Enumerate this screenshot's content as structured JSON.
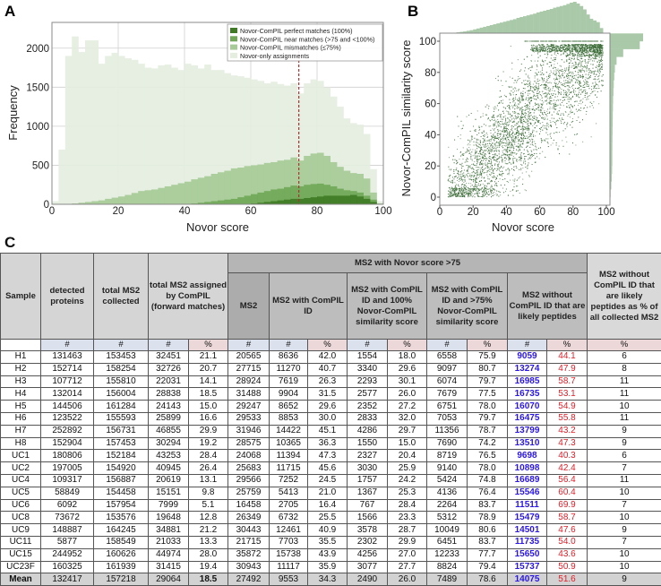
{
  "panels": {
    "a": "A",
    "b": "B",
    "c": "C"
  },
  "chart_data": [
    {
      "type": "bar",
      "subtype": "overlaid histogram",
      "title": "",
      "xlabel": "Novor score",
      "ylabel": "Frequency",
      "xlim": [
        0,
        100
      ],
      "ylim": [
        0,
        2330
      ],
      "xticks": [
        0,
        20,
        40,
        60,
        80,
        100
      ],
      "yticks": [
        0,
        500,
        1000,
        1500,
        2000
      ],
      "grid": true,
      "legend_position": "top-right",
      "threshold_line": {
        "x": 74.5,
        "color": "#b03030",
        "style": "dashed"
      },
      "bin_width": 2,
      "bin_starts": [
        0,
        2,
        4,
        6,
        8,
        10,
        12,
        14,
        16,
        18,
        20,
        22,
        24,
        26,
        28,
        30,
        32,
        34,
        36,
        38,
        40,
        42,
        44,
        46,
        48,
        50,
        52,
        54,
        56,
        58,
        60,
        62,
        64,
        66,
        68,
        70,
        72,
        74,
        76,
        78,
        80,
        82,
        84,
        86,
        88,
        90,
        92,
        94,
        96,
        98
      ],
      "series": [
        {
          "name": "Novor-only assignments",
          "color": "#e4eedf",
          "values": [
            40,
            700,
            1900,
            2150,
            1950,
            2100,
            2100,
            1800,
            1900,
            1940,
            1900,
            1870,
            1850,
            1800,
            1750,
            1740,
            1780,
            1790,
            1750,
            1720,
            1800,
            1780,
            1740,
            1790,
            1720,
            1720,
            1680,
            1650,
            1640,
            1620,
            1600,
            1580,
            1550,
            1570,
            1540,
            1520,
            1550,
            1420,
            1550,
            1600,
            1580,
            1500,
            1380,
            1250,
            1100,
            1040,
            1020,
            900,
            450,
            40
          ]
        },
        {
          "name": "Novor-ComPIL mismatches (≤75%)",
          "color": "#a6cb96",
          "values": [
            0,
            0,
            0,
            10,
            20,
            30,
            40,
            50,
            70,
            85,
            100,
            120,
            145,
            170,
            180,
            190,
            210,
            230,
            250,
            270,
            290,
            320,
            340,
            360,
            390,
            410,
            430,
            460,
            470,
            490,
            500,
            510,
            530,
            540,
            560,
            570,
            600,
            560,
            620,
            650,
            660,
            620,
            540,
            480,
            430,
            400,
            390,
            330,
            150,
            10
          ]
        },
        {
          "name": "Novor-ComPIL near matches (>75 and <100%)",
          "color": "#70a858",
          "values": [
            0,
            0,
            0,
            0,
            0,
            0,
            0,
            0,
            0,
            0,
            0,
            0,
            0,
            0,
            0,
            0,
            0,
            0,
            0,
            0,
            5,
            10,
            20,
            30,
            40,
            50,
            60,
            70,
            90,
            110,
            130,
            150,
            170,
            190,
            200,
            220,
            240,
            230,
            250,
            260,
            265,
            250,
            230,
            200,
            180,
            170,
            150,
            110,
            60,
            5
          ]
        },
        {
          "name": "Novor-ComPIL perfect matches (100%)",
          "color": "#3f7b24",
          "values": [
            0,
            0,
            0,
            0,
            0,
            0,
            0,
            0,
            0,
            0,
            0,
            0,
            0,
            0,
            0,
            0,
            0,
            0,
            0,
            0,
            0,
            0,
            0,
            0,
            0,
            0,
            0,
            0,
            0,
            0,
            10,
            20,
            30,
            40,
            50,
            60,
            70,
            70,
            80,
            90,
            100,
            110,
            110,
            110,
            110,
            120,
            100,
            70,
            30,
            5
          ]
        }
      ]
    },
    {
      "type": "scatter",
      "title": "",
      "xlabel": "Novor score",
      "ylabel": "Novor-ComPIL similarity score",
      "xlim": [
        0,
        102
      ],
      "ylim": [
        -5,
        105
      ],
      "xticks": [
        0,
        20,
        40,
        60,
        80,
        100
      ],
      "yticks": [
        0,
        20,
        40,
        60,
        80,
        100
      ],
      "color": "#3d6e3a",
      "point_count": 7000,
      "trend": {
        "slope": 1.1,
        "intercept": -8,
        "spread": 17
      },
      "high_similarity_band": [
        93,
        98
      ],
      "perfect_line_from_x": 50,
      "marginal_x": {
        "bin_width": 2,
        "color": "#a9c9a9",
        "values": [
          0,
          0,
          0,
          5,
          10,
          20,
          30,
          40,
          55,
          70,
          90,
          110,
          130,
          150,
          170,
          190,
          210,
          230,
          250,
          270,
          290,
          310,
          330,
          360,
          380,
          400,
          420,
          440,
          460,
          490,
          510,
          530,
          550,
          570,
          600,
          620,
          640,
          660,
          690,
          720,
          740,
          700,
          640,
          560,
          440,
          340,
          300,
          260,
          120,
          10
        ]
      },
      "marginal_y": {
        "bin_width": 5,
        "color": "#a9c9a9",
        "values": [
          20,
          40,
          55,
          65,
          70,
          70,
          72,
          75,
          78,
          82,
          85,
          90,
          95,
          105,
          115,
          130,
          150,
          200,
          400,
          900,
          1000
        ]
      }
    }
  ],
  "table": {
    "headers": {
      "sample": "Sample",
      "detected": "detected proteins",
      "total": "total MS2 collected",
      "assigned": "total MS2 assigned by ComPIL (forward matches)",
      "group": "MS2 with Novor score >75",
      "ms2": "MS2",
      "with_compil": "MS2 with ComPIL ID",
      "with_100": "MS2 with ComPIL ID and 100% Novor-ComPIL similarity score",
      "with_75": "MS2 with ComPIL ID and >75% Novor-ComPIL similarity score",
      "without": "MS2 without ComPIL ID that are likely peptides",
      "without_pct_all": "MS2 without ComPIL ID that are likely peptides as % of all collected MS2"
    },
    "sub": {
      "num": "#",
      "pct": "%"
    },
    "rows": [
      [
        "H1",
        "131463",
        "153453",
        "32451",
        "21.1",
        "20565",
        "8636",
        "42.0",
        "1554",
        "18.0",
        "6558",
        "75.9",
        "9059",
        "44.1",
        "6"
      ],
      [
        "H2",
        "152714",
        "158254",
        "32726",
        "20.7",
        "27715",
        "11270",
        "40.7",
        "3340",
        "29.6",
        "9097",
        "80.7",
        "13274",
        "47.9",
        "8"
      ],
      [
        "H3",
        "107712",
        "155810",
        "22031",
        "14.1",
        "28924",
        "7619",
        "26.3",
        "2293",
        "30.1",
        "6074",
        "79.7",
        "16985",
        "58.7",
        "11"
      ],
      [
        "H4",
        "132014",
        "156004",
        "28838",
        "18.5",
        "31488",
        "9904",
        "31.5",
        "2577",
        "26.0",
        "7679",
        "77.5",
        "16735",
        "53.1",
        "11"
      ],
      [
        "H5",
        "144506",
        "161284",
        "24143",
        "15.0",
        "29247",
        "8652",
        "29.6",
        "2352",
        "27.2",
        "6751",
        "78.0",
        "16070",
        "54.9",
        "10"
      ],
      [
        "H6",
        "123522",
        "155593",
        "25899",
        "16.6",
        "29533",
        "8853",
        "30.0",
        "2833",
        "32.0",
        "7053",
        "79.7",
        "16475",
        "55.8",
        "11"
      ],
      [
        "H7",
        "252892",
        "156731",
        "46855",
        "29.9",
        "31946",
        "14422",
        "45.1",
        "4286",
        "29.7",
        "11356",
        "78.7",
        "13799",
        "43.2",
        "9"
      ],
      [
        "H8",
        "152904",
        "157453",
        "30294",
        "19.2",
        "28575",
        "10365",
        "36.3",
        "1550",
        "15.0",
        "7690",
        "74.2",
        "13510",
        "47.3",
        "9"
      ],
      [
        "UC1",
        "180806",
        "152184",
        "43253",
        "28.4",
        "24068",
        "11394",
        "47.3",
        "2327",
        "20.4",
        "8719",
        "76.5",
        "9698",
        "40.3",
        "6"
      ],
      [
        "UC2",
        "197005",
        "154920",
        "40945",
        "26.4",
        "25683",
        "11715",
        "45.6",
        "3030",
        "25.9",
        "9140",
        "78.0",
        "10898",
        "42.4",
        "7"
      ],
      [
        "UC4",
        "109317",
        "156887",
        "20619",
        "13.1",
        "29566",
        "7252",
        "24.5",
        "1757",
        "24.2",
        "5424",
        "74.8",
        "16689",
        "56.4",
        "11"
      ],
      [
        "UC5",
        "58849",
        "154458",
        "15151",
        "9.8",
        "25759",
        "5413",
        "21.0",
        "1367",
        "25.3",
        "4136",
        "76.4",
        "15546",
        "60.4",
        "10"
      ],
      [
        "UC6",
        "6092",
        "157954",
        "7999",
        "5.1",
        "16458",
        "2705",
        "16.4",
        "767",
        "28.4",
        "2264",
        "83.7",
        "11511",
        "69.9",
        "7"
      ],
      [
        "UC8",
        "73672",
        "153576",
        "19648",
        "12.8",
        "26349",
        "6732",
        "25.5",
        "1566",
        "23.3",
        "5312",
        "78.9",
        "15479",
        "58.7",
        "10"
      ],
      [
        "UC9",
        "148887",
        "164245",
        "34881",
        "21.2",
        "30443",
        "12461",
        "40.9",
        "3578",
        "28.7",
        "10049",
        "80.6",
        "14501",
        "47.6",
        "9"
      ],
      [
        "UC11",
        "5877",
        "158549",
        "21033",
        "13.3",
        "21715",
        "7703",
        "35.5",
        "2302",
        "29.9",
        "6451",
        "83.7",
        "11735",
        "54.0",
        "7"
      ],
      [
        "UC15",
        "244952",
        "160626",
        "44974",
        "28.0",
        "35872",
        "15738",
        "43.9",
        "4256",
        "27.0",
        "12233",
        "77.7",
        "15650",
        "43.6",
        "10"
      ],
      [
        "UC23F",
        "160325",
        "161939",
        "31415",
        "19.4",
        "30943",
        "11117",
        "35.9",
        "3077",
        "27.7",
        "8824",
        "79.4",
        "15737",
        "50.9",
        "10"
      ]
    ],
    "mean": [
      "Mean",
      "132417",
      "157218",
      "29064",
      "18.5",
      "27492",
      "9553",
      "34.3",
      "2490",
      "26.0",
      "7489",
      "78.6",
      "14075",
      "51.6",
      "9"
    ]
  }
}
